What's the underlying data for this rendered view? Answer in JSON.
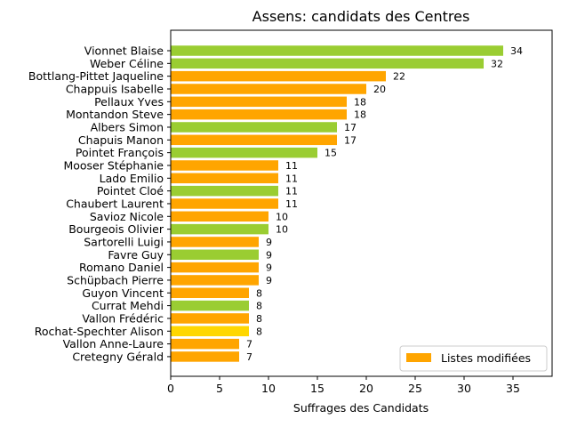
{
  "chart_data": {
    "type": "bar",
    "orientation": "horizontal",
    "title": "Assens: candidats des Centres",
    "xlabel": "Suffrages des Candidats",
    "ylabel": "",
    "xlim": [
      0,
      39
    ],
    "xticks": [
      0,
      5,
      10,
      15,
      20,
      25,
      30,
      35
    ],
    "legend": {
      "label": "Listes modifiées",
      "color": "#ffa500",
      "placement": "lower-right"
    },
    "categories": [
      "Vionnet Blaise",
      "Weber Céline",
      "Bottlang-Pittet Jaqueline",
      "Chappuis Isabelle",
      "Pellaux Yves",
      "Montandon Steve",
      "Albers Simon",
      "Chapuis Manon",
      "Pointet François",
      "Mooser Stéphanie",
      "Lado Emilio",
      "Pointet Cloé",
      "Chaubert Laurent",
      "Savioz Nicole",
      "Bourgeois Olivier",
      "Sartorelli Luigi",
      "Favre Guy",
      "Romano Daniel",
      "Schüpbach Pierre",
      "Guyon Vincent",
      "Currat Mehdi",
      "Vallon Frédéric",
      "Rochat-Spechter Alison",
      "Vallon Anne-Laure",
      "Cretegny Gérald"
    ],
    "values": [
      34,
      32,
      22,
      20,
      18,
      18,
      17,
      17,
      15,
      11,
      11,
      11,
      11,
      10,
      10,
      9,
      9,
      9,
      9,
      8,
      8,
      8,
      8,
      7,
      7
    ],
    "colors": [
      "#9acd32",
      "#9acd32",
      "#ffa500",
      "#ffa500",
      "#ffa500",
      "#ffa500",
      "#9acd32",
      "#ffa500",
      "#9acd32",
      "#ffa500",
      "#ffa500",
      "#9acd32",
      "#ffa500",
      "#ffa500",
      "#9acd32",
      "#ffa500",
      "#9acd32",
      "#ffa500",
      "#ffa500",
      "#ffa500",
      "#9acd32",
      "#ffa500",
      "#ffd700",
      "#ffa500",
      "#ffa500"
    ]
  }
}
